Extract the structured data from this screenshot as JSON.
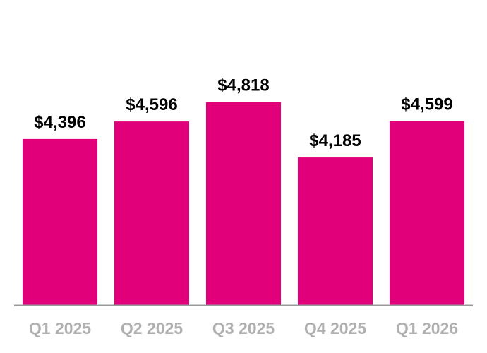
{
  "chart_data": {
    "type": "bar",
    "title": "",
    "xlabel": "",
    "ylabel": "",
    "categories": [
      "Q1 2025",
      "Q2 2025",
      "Q3 2025",
      "Q4 2025",
      "Q1 2026"
    ],
    "values": [
      4396,
      4596,
      4818,
      4185,
      4599
    ],
    "value_labels": [
      "$4,396",
      "$4,596",
      "$4,818",
      "$4,185",
      "$4,599"
    ],
    "ylim": [
      2500,
      6000
    ],
    "grid": false,
    "legend": "none",
    "colors": {
      "bar": "#E2007A",
      "axis": "#999999",
      "tick_label": "#B0B0B0",
      "value_label": "#000000"
    }
  }
}
